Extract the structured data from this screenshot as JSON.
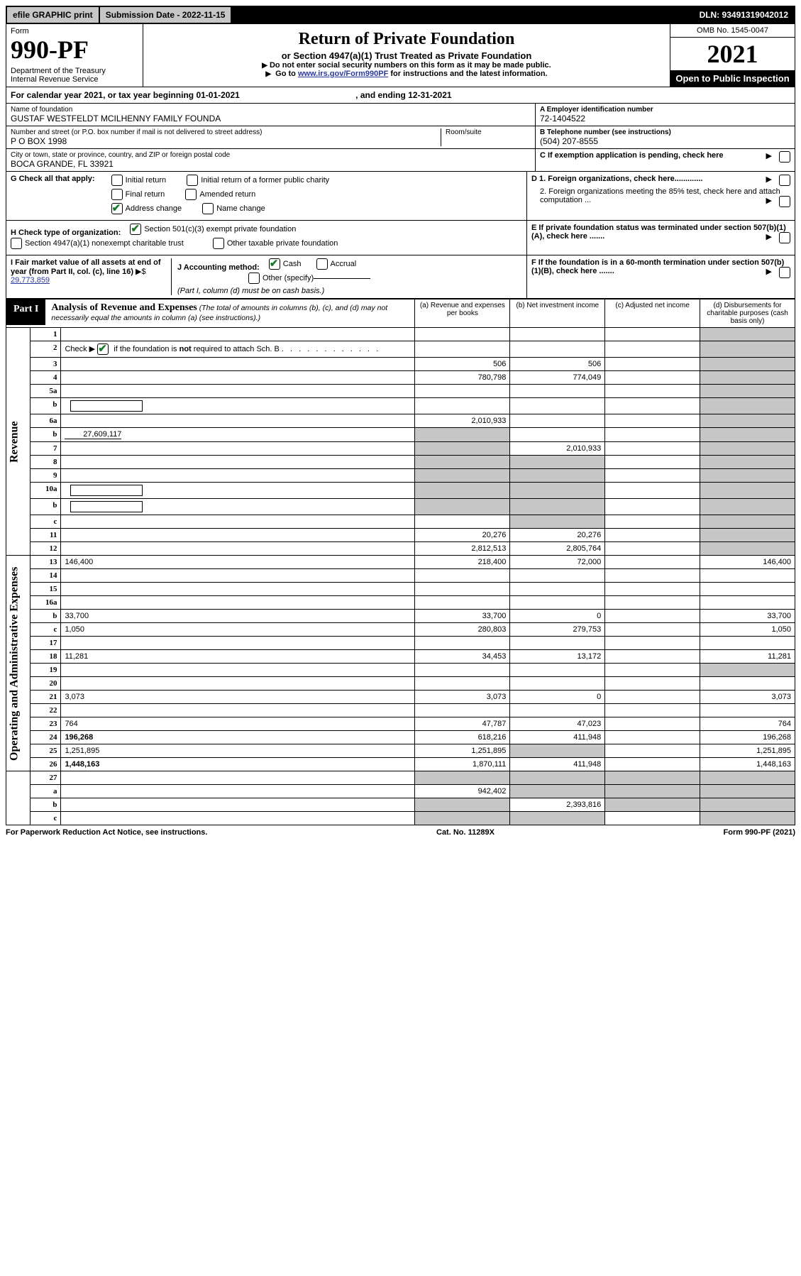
{
  "topbar": {
    "efile": "efile GRAPHIC print",
    "submission_label": "Submission Date - 2022-11-15",
    "dln": "DLN: 93491319042012"
  },
  "header": {
    "form_label": "Form",
    "form_number": "990-PF",
    "dept1": "Department of the Treasury",
    "dept2": "Internal Revenue Service",
    "title": "Return of Private Foundation",
    "subtitle": "or Section 4947(a)(1) Trust Treated as Private Foundation",
    "note1": "Do not enter social security numbers on this form as it may be made public.",
    "note2_pre": "Go to ",
    "note2_link": "www.irs.gov/Form990PF",
    "note2_post": " for instructions and the latest information.",
    "omb": "OMB No. 1545-0047",
    "year": "2021",
    "inspection": "Open to Public Inspection"
  },
  "calendar_line": "For calendar year 2021, or tax year beginning 01-01-2021",
  "calendar_end": ", and ending 12-31-2021",
  "name_block": {
    "lbl": "Name of foundation",
    "val": "GUSTAF WESTFELDT MCILHENNY FAMILY FOUNDA"
  },
  "ein_block": {
    "lbl": "A Employer identification number",
    "val": "72-1404522"
  },
  "addr_block": {
    "lbl": "Number and street (or P.O. box number if mail is not delivered to street address)",
    "val": "P O BOX 1998",
    "room_lbl": "Room/suite"
  },
  "phone_block": {
    "lbl": "B Telephone number (see instructions)",
    "val": "(504) 207-8555"
  },
  "city_block": {
    "lbl": "City or town, state or province, country, and ZIP or foreign postal code",
    "val": "BOCA GRANDE, FL  33921"
  },
  "c_block": "C If exemption application is pending, check here",
  "g_block": {
    "label": "G Check all that apply:",
    "opts": [
      "Initial return",
      "Initial return of a former public charity",
      "Final return",
      "Amended return",
      "Address change",
      "Name change"
    ]
  },
  "d_block": {
    "d1": "D 1. Foreign organizations, check here.............",
    "d2": "2. Foreign organizations meeting the 85% test, check here and attach computation ..."
  },
  "h_block": {
    "label": "H Check type of organization:",
    "opts": [
      "Section 501(c)(3) exempt private foundation",
      "Section 4947(a)(1) nonexempt charitable trust",
      "Other taxable private foundation"
    ]
  },
  "e_block": "E If private foundation status was terminated under section 507(b)(1)(A), check here .......",
  "i_block": {
    "label": "I Fair market value of all assets at end of year (from Part II, col. (c), line 16)",
    "val": "29,773,859"
  },
  "j_block": {
    "label": "J Accounting method:",
    "opts": [
      "Cash",
      "Accrual",
      "Other (specify)"
    ],
    "note": "(Part I, column (d) must be on cash basis.)"
  },
  "f_block": "F If the foundation is in a 60-month termination under section 507(b)(1)(B), check here .......",
  "part1": {
    "label": "Part I",
    "title": "Analysis of Revenue and Expenses",
    "sub": "(The total of amounts in columns (b), (c), and (d) may not necessarily equal the amounts in column (a) (see instructions).)",
    "cols": {
      "a": "(a) Revenue and expenses per books",
      "b": "(b) Net investment income",
      "c": "(c) Adjusted net income",
      "d": "(d) Disbursements for charitable purposes (cash basis only)"
    }
  },
  "section_labels": {
    "revenue": "Revenue",
    "expenses": "Operating and Administrative Expenses"
  },
  "rows": [
    {
      "n": "1",
      "d": "",
      "a": "",
      "b": "",
      "c": "",
      "sect": "rev"
    },
    {
      "n": "2",
      "d": "",
      "a": "",
      "b": "",
      "c": "",
      "sect": "rev",
      "check2": true
    },
    {
      "n": "3",
      "d": "",
      "a": "506",
      "b": "506",
      "c": "",
      "sect": "rev"
    },
    {
      "n": "4",
      "d": "",
      "a": "780,798",
      "b": "774,049",
      "c": "",
      "sect": "rev"
    },
    {
      "n": "5a",
      "d": "",
      "a": "",
      "b": "",
      "c": "",
      "sect": "rev"
    },
    {
      "n": "b",
      "d": "",
      "a": "",
      "b": "",
      "c": "",
      "sect": "rev",
      "inset": true
    },
    {
      "n": "6a",
      "d": "",
      "a": "2,010,933",
      "b": "",
      "c": "",
      "sect": "rev"
    },
    {
      "n": "b",
      "d": "",
      "a": "",
      "b": "",
      "c": "",
      "sect": "rev",
      "inline_val": "27,609,117",
      "grey_a": true
    },
    {
      "n": "7",
      "d": "",
      "a": "",
      "b": "2,010,933",
      "c": "",
      "sect": "rev",
      "grey_a": true
    },
    {
      "n": "8",
      "d": "",
      "a": "",
      "b": "",
      "c": "",
      "sect": "rev",
      "grey_a": true,
      "grey_b": true
    },
    {
      "n": "9",
      "d": "",
      "a": "",
      "b": "",
      "c": "",
      "sect": "rev",
      "grey_a": true,
      "grey_b": true
    },
    {
      "n": "10a",
      "d": "",
      "a": "",
      "b": "",
      "c": "",
      "sect": "rev",
      "grey_a": true,
      "grey_b": true,
      "inset": true
    },
    {
      "n": "b",
      "d": "",
      "a": "",
      "b": "",
      "c": "",
      "sect": "rev",
      "grey_a": true,
      "grey_b": true,
      "inset": true
    },
    {
      "n": "c",
      "d": "",
      "a": "",
      "b": "",
      "c": "",
      "sect": "rev",
      "grey_b": true
    },
    {
      "n": "11",
      "d": "",
      "a": "20,276",
      "b": "20,276",
      "c": "",
      "sect": "rev"
    },
    {
      "n": "12",
      "d": "",
      "a": "2,812,513",
      "b": "2,805,764",
      "c": "",
      "sect": "rev",
      "bold": true,
      "grey_d": true
    },
    {
      "n": "13",
      "d": "146,400",
      "a": "218,400",
      "b": "72,000",
      "c": "",
      "sect": "exp"
    },
    {
      "n": "14",
      "d": "",
      "a": "",
      "b": "",
      "c": "",
      "sect": "exp"
    },
    {
      "n": "15",
      "d": "",
      "a": "",
      "b": "",
      "c": "",
      "sect": "exp"
    },
    {
      "n": "16a",
      "d": "",
      "a": "",
      "b": "",
      "c": "",
      "sect": "exp"
    },
    {
      "n": "b",
      "d": "33,700",
      "a": "33,700",
      "b": "0",
      "c": "",
      "sect": "exp"
    },
    {
      "n": "c",
      "d": "1,050",
      "a": "280,803",
      "b": "279,753",
      "c": "",
      "sect": "exp"
    },
    {
      "n": "17",
      "d": "",
      "a": "",
      "b": "",
      "c": "",
      "sect": "exp"
    },
    {
      "n": "18",
      "d": "11,281",
      "a": "34,453",
      "b": "13,172",
      "c": "",
      "sect": "exp"
    },
    {
      "n": "19",
      "d": "",
      "a": "",
      "b": "",
      "c": "",
      "sect": "exp",
      "grey_d": true
    },
    {
      "n": "20",
      "d": "",
      "a": "",
      "b": "",
      "c": "",
      "sect": "exp"
    },
    {
      "n": "21",
      "d": "3,073",
      "a": "3,073",
      "b": "0",
      "c": "",
      "sect": "exp"
    },
    {
      "n": "22",
      "d": "",
      "a": "",
      "b": "",
      "c": "",
      "sect": "exp"
    },
    {
      "n": "23",
      "d": "764",
      "a": "47,787",
      "b": "47,023",
      "c": "",
      "sect": "exp"
    },
    {
      "n": "24",
      "d": "196,268",
      "a": "618,216",
      "b": "411,948",
      "c": "",
      "sect": "exp",
      "bold": true
    },
    {
      "n": "25",
      "d": "1,251,895",
      "a": "1,251,895",
      "b": "",
      "c": "",
      "sect": "exp",
      "grey_b": true
    },
    {
      "n": "26",
      "d": "1,448,163",
      "a": "1,870,111",
      "b": "411,948",
      "c": "",
      "sect": "exp",
      "bold": true
    },
    {
      "n": "27",
      "d": "",
      "a": "",
      "b": "",
      "c": "",
      "sect": "end",
      "grey_all": true
    },
    {
      "n": "a",
      "d": "",
      "a": "942,402",
      "b": "",
      "c": "",
      "sect": "end",
      "bold": true,
      "grey_b": true,
      "grey_c": true,
      "grey_d": true
    },
    {
      "n": "b",
      "d": "",
      "a": "",
      "b": "2,393,816",
      "c": "",
      "sect": "end",
      "bold": true,
      "grey_a": true,
      "grey_c": true,
      "grey_d": true
    },
    {
      "n": "c",
      "d": "",
      "a": "",
      "b": "",
      "c": "",
      "sect": "end",
      "bold": true,
      "grey_a": true,
      "grey_b": true,
      "grey_d": true
    }
  ],
  "footer": {
    "left": "For Paperwork Reduction Act Notice, see instructions.",
    "mid": "Cat. No. 11289X",
    "right": "Form 990-PF (2021)"
  }
}
